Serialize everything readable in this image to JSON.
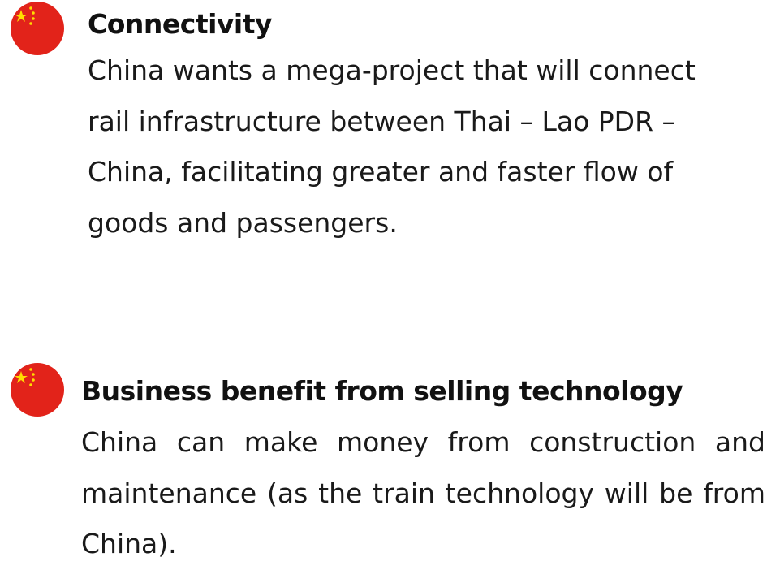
{
  "items": [
    {
      "heading": "Connectivity",
      "body": "China wants a mega-project that will connect rail infrastructure between Thai – Lao PDR – China, facilitating greater and faster flow of goods and passengers."
    },
    {
      "heading": "Business benefit from selling technology",
      "body": "China can make money from construction and maintenance (as the train technology will be from China)."
    }
  ]
}
